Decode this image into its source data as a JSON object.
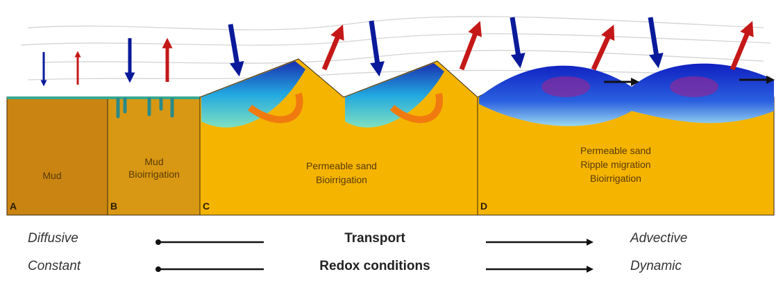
{
  "panels": [
    {
      "letter": "A",
      "lines": [
        "Mud"
      ]
    },
    {
      "letter": "B",
      "lines": [
        "Mud",
        "Bioirrigation"
      ]
    },
    {
      "letter": "C",
      "lines": [
        "Permeable sand",
        "Bioirrigation"
      ]
    },
    {
      "letter": "D",
      "lines": [
        "Permeable sand",
        "Ripple migration",
        "Bioirrigation"
      ]
    }
  ],
  "scale": {
    "left": [
      "Diffusive",
      "Constant"
    ],
    "center": [
      "Transport",
      "Redox conditions"
    ],
    "right": [
      "Advective",
      "Dynamic"
    ]
  }
}
